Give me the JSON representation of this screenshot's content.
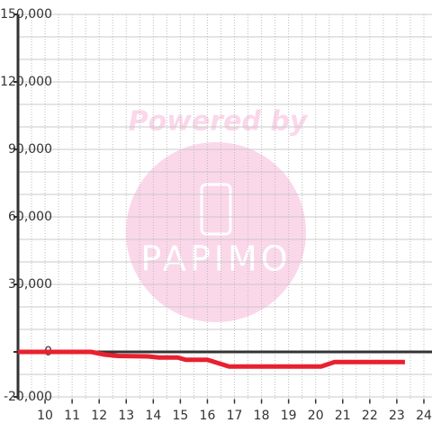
{
  "chart_data": {
    "type": "line",
    "x": [
      9,
      11.7,
      12.2,
      12.7,
      13.8,
      14.2,
      14.9,
      15.2,
      16.0,
      16.4,
      16.8,
      20.2,
      20.7,
      23.3
    ],
    "series": [
      {
        "color": "#e8202f",
        "values": [
          0,
          0,
          -1200,
          -1800,
          -2000,
          -2500,
          -2500,
          -3500,
          -3500,
          -5000,
          -6500,
          -6500,
          -4500,
          -4500
        ]
      }
    ],
    "xlim": [
      9,
      24.3
    ],
    "xticks": [
      10,
      11,
      12,
      13,
      14,
      15,
      16,
      17,
      18,
      19,
      20,
      21,
      22,
      23,
      24
    ],
    "xminorticks": [
      9.5,
      10.5,
      11.5,
      12.5,
      13.5,
      14.5,
      15.5,
      16.5,
      17.5,
      18.5,
      19.5,
      20.5,
      21.5,
      22.5,
      23.5
    ],
    "ylim": [
      -21000,
      150000
    ],
    "yticks": [
      {
        "value": -20000,
        "label": "-20,000"
      },
      0,
      {
        "value": 30000,
        "label": "30,000"
      },
      {
        "value": 60000,
        "label": "60,000"
      },
      {
        "value": 90000,
        "label": "90,000"
      },
      {
        "value": 120000,
        "label": "120,000"
      },
      {
        "value": 150000,
        "label": "150,000"
      }
    ],
    "yminorticks": [
      -10000,
      10000,
      20000,
      40000,
      50000,
      70000,
      80000,
      100000,
      110000,
      130000,
      140000
    ],
    "grid": true,
    "watermark": {
      "text": "Powered by",
      "logo": "PAPIMO"
    }
  }
}
